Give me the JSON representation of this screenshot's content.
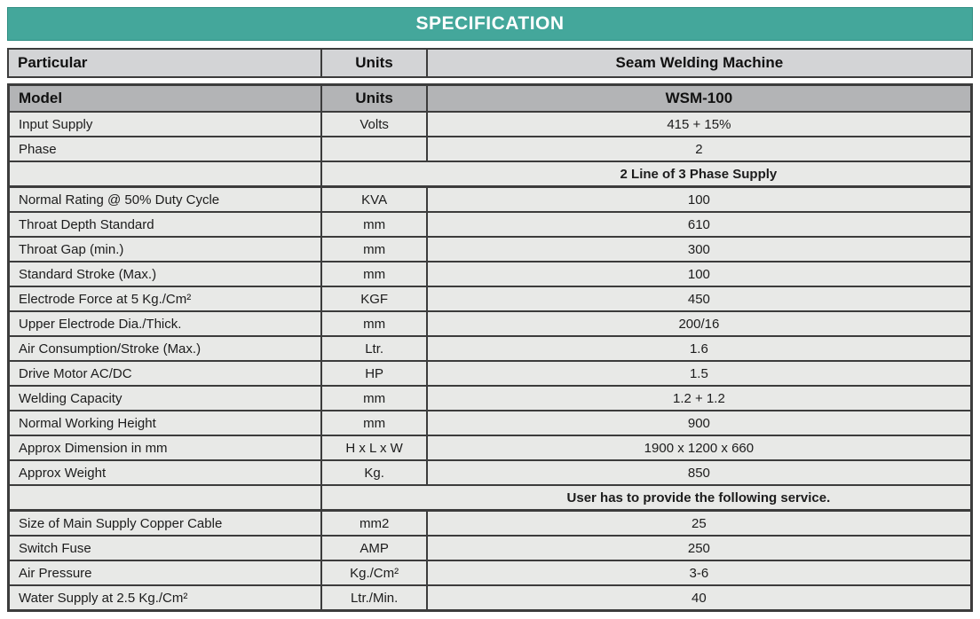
{
  "title": "SPECIFICATION",
  "colors": {
    "accent_teal": "#44A79B",
    "accent_teal_dark": "#2F8D82",
    "header_gray": "#D3D4D6",
    "model_gray": "#B3B4B6",
    "row_gray": "#E8E9E7",
    "border_dark": "#3C3C3C",
    "title_text": "#FFFFFF"
  },
  "columns": {
    "particular": "Particular",
    "units": "Units",
    "machine": "Seam Welding Machine"
  },
  "model_row": {
    "particular": "Model",
    "units": "Units",
    "value": "WSM-100"
  },
  "rows": [
    {
      "particular": "Input Supply",
      "units": "Volts",
      "value": "415 + 15%"
    },
    {
      "particular": "Phase",
      "units": "",
      "value": "2"
    },
    {
      "type": "section",
      "particular": "",
      "units": "",
      "value": "2 Line of 3 Phase Supply"
    },
    {
      "particular": "Normal Rating @ 50% Duty Cycle",
      "units": "KVA",
      "value": "100"
    },
    {
      "particular": "Throat Depth Standard",
      "units": "mm",
      "value": "610"
    },
    {
      "particular": "Throat Gap (min.)",
      "units": "mm",
      "value": "300"
    },
    {
      "particular": "Standard Stroke (Max.)",
      "units": "mm",
      "value": "100"
    },
    {
      "particular": "Electrode Force at 5 Kg./Cm²",
      "units": "KGF",
      "value": "450"
    },
    {
      "particular": "Upper Electrode Dia./Thick.",
      "units": "mm",
      "value": "200/16"
    },
    {
      "particular": "Air Consumption/Stroke (Max.)",
      "units": "Ltr.",
      "value": "1.6"
    },
    {
      "particular": "Drive Motor AC/DC",
      "units": "HP",
      "value": "1.5"
    },
    {
      "particular": "Welding Capacity",
      "units": "mm",
      "value": "1.2 + 1.2"
    },
    {
      "particular": "Normal Working Height",
      "units": "mm",
      "value": "900"
    },
    {
      "particular": "Approx Dimension in mm",
      "units": "H x L x W",
      "value": "1900 x 1200 x 660"
    },
    {
      "particular": "Approx Weight",
      "units": "Kg.",
      "value": "850"
    },
    {
      "type": "section",
      "particular": "",
      "units": "",
      "value": "User has to provide the following service."
    },
    {
      "particular": "Size of Main Supply Copper Cable",
      "units": "mm2",
      "value": "25"
    },
    {
      "particular": "Switch Fuse",
      "units": "AMP",
      "value": "250"
    },
    {
      "particular": "Air Pressure",
      "units": "Kg./Cm²",
      "value": "3-6"
    },
    {
      "particular": "Water Supply at 2.5 Kg./Cm²",
      "units": "Ltr./Min.",
      "value": "40"
    }
  ]
}
